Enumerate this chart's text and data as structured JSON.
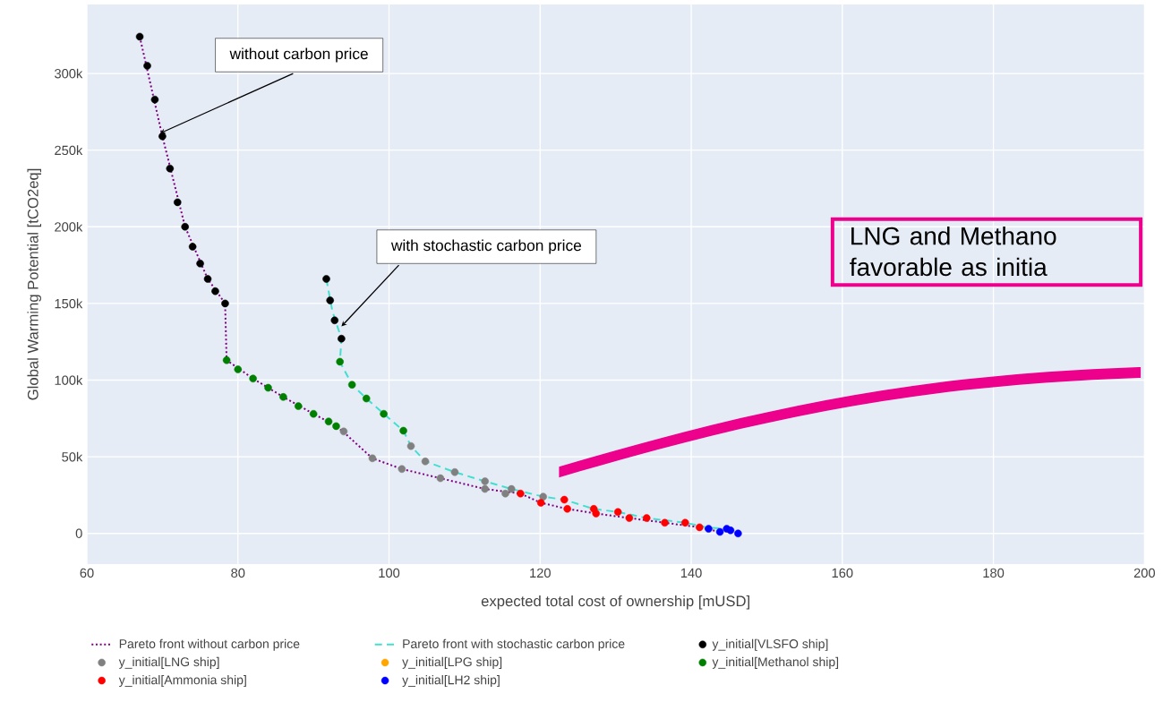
{
  "chart_data": {
    "type": "scatter",
    "xlabel": "expected total cost of ownership [mUSD]",
    "ylabel": "Global Warming Potential [tCO2eq]",
    "xlim": [
      60,
      200
    ],
    "ylim": [
      -20000,
      345000
    ],
    "xticks": [
      60,
      80,
      100,
      120,
      140,
      160,
      180,
      200
    ],
    "yticks": [
      {
        "value": 0,
        "label": "0"
      },
      {
        "value": 50000,
        "label": "50k"
      },
      {
        "value": 100000,
        "label": "100k"
      },
      {
        "value": 150000,
        "label": "150k"
      },
      {
        "value": 200000,
        "label": "200k"
      },
      {
        "value": 250000,
        "label": "250k"
      },
      {
        "value": 300000,
        "label": "300k"
      }
    ],
    "grid": true,
    "legend": "bottom",
    "series": [
      {
        "name": "Pareto front without carbon price",
        "type": "line",
        "line_style": "dotted",
        "marker": "none",
        "color": "#800080",
        "x": [
          67,
          70,
          73,
          76,
          78.3,
          78.5,
          82,
          86,
          90,
          93,
          94,
          97.8,
          101.7,
          106.8,
          112.7,
          117.4,
          120.1,
          123.6,
          127.4,
          131.8,
          136.5,
          141.1,
          143.8
        ],
        "values": [
          324000,
          259000,
          200000,
          166000,
          150000,
          113000,
          101000,
          89000,
          78000,
          70000,
          66000,
          49000,
          42000,
          36000,
          29000,
          26000,
          20000,
          16000,
          13000,
          10000,
          7000,
          4000,
          1000
        ]
      },
      {
        "name": "Pareto front with stochastic carbon price",
        "type": "line",
        "line_style": "dashed",
        "marker": "none",
        "color": "#40e0d0",
        "x": [
          91.7,
          92.5,
          93.7,
          93.5,
          95.1,
          97,
          99.3,
          101.9,
          102.9,
          104.8,
          108.7,
          112.7,
          116.2,
          120.4,
          123.2,
          127.1,
          130.3,
          134.1,
          139.2,
          142,
          144.7,
          146.2
        ],
        "values": [
          166000,
          145000,
          127000,
          112000,
          97000,
          88000,
          78000,
          67000,
          57000,
          47000,
          40000,
          34000,
          29000,
          24000,
          22000,
          16000,
          14000,
          10000,
          7000,
          4000,
          3000,
          0
        ]
      },
      {
        "name": "y_initial[VLSFO ship]",
        "marker": "circle",
        "color": "#000000",
        "x": [
          67,
          68,
          69,
          70,
          71,
          72,
          73,
          74,
          75,
          76,
          77,
          78.3,
          91.7,
          92.2,
          92.8,
          93.7
        ],
        "values": [
          324000,
          305000,
          283000,
          259000,
          238000,
          216000,
          200000,
          187000,
          176000,
          166000,
          158000,
          150000,
          166000,
          152000,
          139000,
          127000
        ]
      },
      {
        "name": "y_initial[LNG ship]",
        "marker": "circle",
        "color": "#808080",
        "x": [
          94,
          97.8,
          101.7,
          106.8,
          112.7,
          115.4,
          102.9,
          104.8,
          108.7,
          112.7,
          116.2,
          120.4
        ],
        "values": [
          66500,
          49000,
          42000,
          36000,
          29000,
          26000,
          57000,
          47000,
          40000,
          34000,
          29000,
          24000
        ]
      },
      {
        "name": "y_initial[LPG ship]",
        "marker": "circle",
        "color": "#ffa500"
      },
      {
        "name": "y_initial[Methanol ship]",
        "marker": "circle",
        "color": "#008000",
        "x": [
          78.5,
          80,
          82,
          84,
          86,
          88,
          90,
          92,
          93,
          93.5,
          95.1,
          97,
          99.3,
          101.9
        ],
        "values": [
          113000,
          107000,
          101000,
          95000,
          89000,
          83000,
          78000,
          73000,
          70000,
          112000,
          97000,
          88000,
          78000,
          67000
        ]
      },
      {
        "name": "y_initial[Ammonia ship]",
        "marker": "circle",
        "color": "#ff0000",
        "x": [
          117.4,
          120.1,
          123.6,
          127.4,
          131.8,
          136.5,
          141.1,
          123.2,
          127.1,
          130.3,
          134.1,
          139.2
        ],
        "values": [
          26000,
          20000,
          16000,
          13000,
          10000,
          7000,
          4000,
          22000,
          16000,
          14000,
          10000,
          7000
        ]
      },
      {
        "name": "y_initial[LH2 ship]",
        "marker": "circle",
        "color": "#0000ff",
        "x": [
          142.3,
          143.8,
          144.7,
          145.2,
          146.2
        ],
        "values": [
          3000,
          1000,
          3000,
          2000,
          0
        ]
      }
    ],
    "annotations": [
      {
        "text": "without carbon price",
        "x": 69.7,
        "y": 261000
      },
      {
        "text": "with stochastic carbon price",
        "x": 93.7,
        "y": 135000
      },
      "LNG and Methano favorable as initia"
    ]
  }
}
